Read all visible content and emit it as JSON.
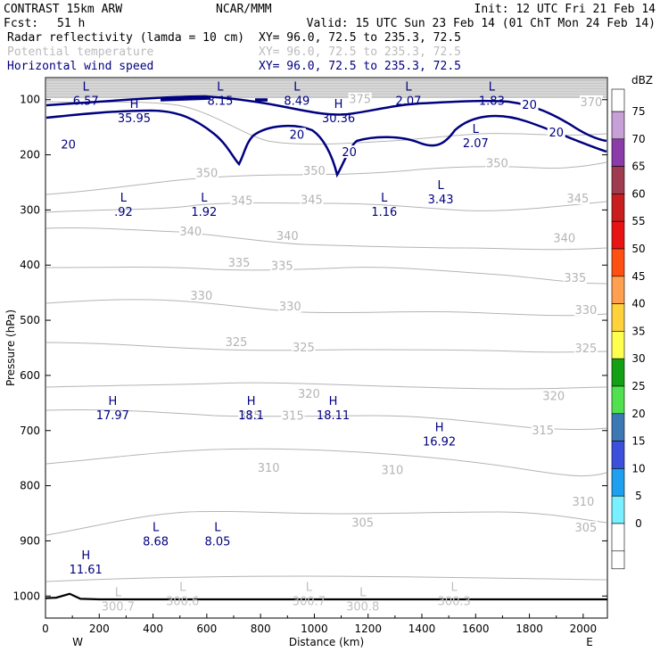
{
  "header": {
    "model": "CONTRAST 15km ARW",
    "fcst_label": "Fcst:",
    "fcst_value": "51 h",
    "center": "NCAR/MMM",
    "init": "Init: 12 UTC Fri 21 Feb 14",
    "valid": "Valid: 15 UTC Sun 23 Feb 14 (01 ChT Mon 24 Feb 14)",
    "fields": [
      {
        "name": "Radar reflectivity (lamda = 10 cm)",
        "xy": "XY=  96.0, 72.5 to 235.3, 72.5",
        "color": "#000000"
      },
      {
        "name": "Potential temperature",
        "xy": "XY=  96.0, 72.5 to 235.3, 72.5",
        "color": "#bbbbbb"
      },
      {
        "name": "Horizontal wind speed",
        "xy": "XY=  96.0, 72.5 to 235.3, 72.5",
        "color": "#000080"
      }
    ]
  },
  "chart_data": {
    "type": "cross-section",
    "xlabel": "Distance (km)",
    "ylabel": "Pressure (hPa)",
    "xlim": [
      0,
      2090
    ],
    "ylim": [
      1040,
      60
    ],
    "x_ticks": [
      "0",
      "200",
      "400",
      "600",
      "800",
      "1000",
      "1200",
      "1400",
      "1600",
      "1800",
      "2000"
    ],
    "y_ticks": [
      "100",
      "200",
      "300",
      "400",
      "500",
      "600",
      "700",
      "800",
      "900",
      "1000"
    ],
    "x_end_labels": {
      "left": "W",
      "right": "E"
    },
    "colorbar": {
      "unit": "dBZ",
      "levels": [
        "75",
        "70",
        "65",
        "60",
        "55",
        "50",
        "45",
        "40",
        "35",
        "30",
        "25",
        "20",
        "15",
        "10",
        "5",
        "0"
      ],
      "colors": [
        "#c8a0d8",
        "#8c3ca8",
        "#a03c50",
        "#c81e1e",
        "#e81414",
        "#ff5014",
        "#ffa050",
        "#ffd23c",
        "#ffff50",
        "#14a014",
        "#50e050",
        "#3c78b4",
        "#3c50dc",
        "#1ea0f0",
        "#78f0ff",
        "#ffffff"
      ]
    },
    "theta_contours": [
      {
        "value": 350,
        "labels": [
          {
            "text": "350",
            "x": 600,
            "p": 234
          },
          {
            "text": "350",
            "x": 1000,
            "p": 230
          },
          {
            "text": "350",
            "x": 1680,
            "p": 216
          }
        ]
      },
      {
        "value": 345,
        "labels": [
          {
            "text": "345",
            "x": 730,
            "p": 284
          },
          {
            "text": "345",
            "x": 990,
            "p": 282
          },
          {
            "text": "345",
            "x": 1980,
            "p": 280
          }
        ]
      },
      {
        "value": 340,
        "labels": [
          {
            "text": "340",
            "x": 540,
            "p": 340
          },
          {
            "text": "340",
            "x": 900,
            "p": 348
          },
          {
            "text": "340",
            "x": 1930,
            "p": 352
          }
        ]
      },
      {
        "value": 335,
        "labels": [
          {
            "text": "335",
            "x": 720,
            "p": 396
          },
          {
            "text": "335",
            "x": 880,
            "p": 402
          },
          {
            "text": "335",
            "x": 1970,
            "p": 424
          }
        ]
      },
      {
        "value": 330,
        "labels": [
          {
            "text": "330",
            "x": 580,
            "p": 456
          },
          {
            "text": "330",
            "x": 910,
            "p": 476
          },
          {
            "text": "330",
            "x": 2010,
            "p": 482
          }
        ]
      },
      {
        "value": 325,
        "labels": [
          {
            "text": "325",
            "x": 710,
            "p": 540
          },
          {
            "text": "325",
            "x": 960,
            "p": 550
          },
          {
            "text": "325",
            "x": 2010,
            "p": 552
          }
        ]
      },
      {
        "value": 320,
        "labels": [
          {
            "text": "320",
            "x": 980,
            "p": 634
          },
          {
            "text": "320",
            "x": 1890,
            "p": 638
          }
        ]
      },
      {
        "value": 315,
        "labels": [
          {
            "text": "315",
            "x": 760,
            "p": 674
          },
          {
            "text": "315",
            "x": 920,
            "p": 674
          },
          {
            "text": "315",
            "x": 1850,
            "p": 700
          }
        ]
      },
      {
        "value": 310,
        "labels": [
          {
            "text": "310",
            "x": 830,
            "p": 768
          },
          {
            "text": "310",
            "x": 1290,
            "p": 772
          },
          {
            "text": "310",
            "x": 2000,
            "p": 830
          }
        ]
      },
      {
        "value": 305,
        "labels": [
          {
            "text": "305",
            "x": 1180,
            "p": 868
          },
          {
            "text": "305",
            "x": 2010,
            "p": 877
          }
        ]
      },
      {
        "value": 375,
        "labels": [
          {
            "text": "375",
            "x": 1170,
            "p": 100
          }
        ]
      },
      {
        "value": 370,
        "labels": [
          {
            "text": "370",
            "x": 2030,
            "p": 105
          }
        ]
      }
    ],
    "wind_contours": [
      {
        "value": 20,
        "labels": [
          {
            "text": "20",
            "x": 85,
            "p": 182
          },
          {
            "text": "20",
            "x": 935,
            "p": 164
          },
          {
            "text": "20",
            "x": 1130,
            "p": 196
          },
          {
            "text": "20",
            "x": 1800,
            "p": 110
          },
          {
            "text": "20",
            "x": 1900,
            "p": 160
          }
        ]
      }
    ],
    "wind_extrema": [
      {
        "kind": "L",
        "value": "6.57",
        "x": 150,
        "p": 88
      },
      {
        "kind": "H",
        "value": "35.95",
        "x": 330,
        "p": 120
      },
      {
        "kind": "L",
        "value": "8.15",
        "x": 650,
        "p": 88
      },
      {
        "kind": "L",
        "value": "8.49",
        "x": 935,
        "p": 88
      },
      {
        "kind": "H",
        "value": "30.36",
        "x": 1090,
        "p": 120
      },
      {
        "kind": "L",
        "value": "2.07",
        "x": 1350,
        "p": 88
      },
      {
        "kind": "L",
        "value": "1.83",
        "x": 1660,
        "p": 88
      },
      {
        "kind": "L",
        "value": "2.07",
        "x": 1600,
        "p": 165
      },
      {
        "kind": "L",
        "value": ".92",
        "x": 290,
        "p": 290
      },
      {
        "kind": "L",
        "value": "1.92",
        "x": 590,
        "p": 290
      },
      {
        "kind": "L",
        "value": "1.16",
        "x": 1260,
        "p": 290
      },
      {
        "kind": "L",
        "value": "3.43",
        "x": 1470,
        "p": 267
      },
      {
        "kind": "H",
        "value": "17.97",
        "x": 250,
        "p": 658
      },
      {
        "kind": "H",
        "value": "18.1",
        "x": 765,
        "p": 658
      },
      {
        "kind": "H",
        "value": "18.11",
        "x": 1070,
        "p": 658
      },
      {
        "kind": "H",
        "value": "16.92",
        "x": 1465,
        "p": 706
      },
      {
        "kind": "L",
        "value": "8.68",
        "x": 410,
        "p": 887
      },
      {
        "kind": "L",
        "value": "8.05",
        "x": 640,
        "p": 887
      },
      {
        "kind": "H",
        "value": "11.61",
        "x": 150,
        "p": 938
      }
    ],
    "theta_extrema": [
      {
        "kind": "L",
        "value": "300.7",
        "x": 270,
        "p": 1010
      },
      {
        "kind": "L",
        "value": "300.6",
        "x": 510,
        "p": 1000
      },
      {
        "kind": "L",
        "value": "300.7",
        "x": 980,
        "p": 1000
      },
      {
        "kind": "L",
        "value": "300.8",
        "x": 1180,
        "p": 1010
      },
      {
        "kind": "L",
        "value": "300.3",
        "x": 1520,
        "p": 1000
      }
    ],
    "terrain": {
      "x": [
        0,
        40,
        90,
        130,
        200,
        400,
        800,
        1200,
        1600,
        2000,
        2090
      ],
      "p": [
        1004,
        1003,
        996,
        1005,
        1006,
        1006,
        1006,
        1006,
        1006,
        1006,
        1006
      ]
    }
  }
}
